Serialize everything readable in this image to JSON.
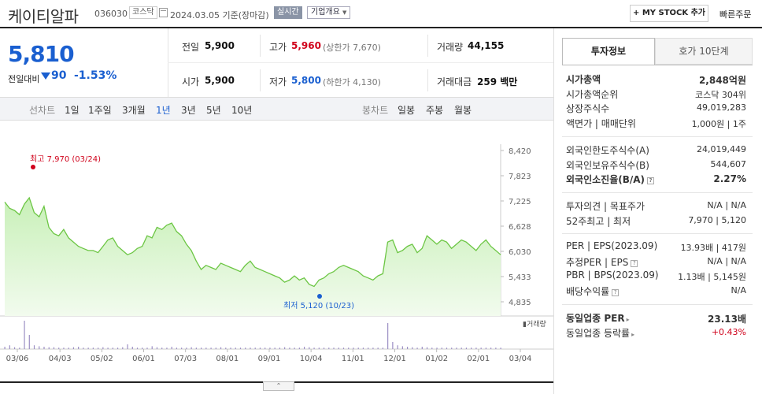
{
  "header": {
    "stock_name": "케이티알파",
    "code": "036030",
    "market_badge": "코스닥",
    "date": "2024.03.05",
    "basis": "기준(장마감)",
    "realtime_label": "실시간",
    "corp_info_label": "기업개요",
    "mystock_label": "+ MY STOCK 추가",
    "quick_order_label": "빠른주문"
  },
  "price": {
    "current": "5,810",
    "compare_label": "전일대비",
    "change": "90",
    "change_pct": "-1.53%",
    "prev_label": "전일",
    "prev": "5,900",
    "high_label": "고가",
    "high": "5,960",
    "upper_limit": "(상한가 7,670)",
    "volume_label": "거래량",
    "volume": "44,155",
    "open_label": "시가",
    "open": "5,900",
    "low_label": "저가",
    "low": "5,800",
    "lower_limit": "(하한가 4,130)",
    "amount_label": "거래대금",
    "amount": "259 백만"
  },
  "tabs": {
    "line_label": "선차트",
    "periods": [
      "1일",
      "1주일",
      "3개월",
      "1년",
      "3년",
      "5년",
      "10년"
    ],
    "active": "1년",
    "candle_label": "봉차트",
    "candles": [
      "일봉",
      "주봉",
      "월봉"
    ]
  },
  "chart_data": {
    "type": "area",
    "title": "",
    "xlabel": "",
    "ylabel": "",
    "x_ticks": [
      "03/06",
      "04/03",
      "05/02",
      "06/01",
      "07/03",
      "08/01",
      "09/01",
      "10/04",
      "11/01",
      "12/01",
      "01/02",
      "02/01",
      "03/04"
    ],
    "y_ticks": [
      "8,420",
      "7,823",
      "7,225",
      "6,628",
      "6,030",
      "5,433",
      "4,835"
    ],
    "ylim": [
      4835,
      8420
    ],
    "max_label": "최고 7,970 (03/24)",
    "min_label": "최저 5,120 (10/23)",
    "volume_label": "거래량",
    "series": [
      {
        "name": "",
        "values": [
          7200,
          7050,
          7000,
          6900,
          7150,
          7300,
          6950,
          6850,
          7100,
          6600,
          6450,
          6400,
          6550,
          6350,
          6250,
          6150,
          6100,
          6050,
          6050,
          6000,
          6150,
          6300,
          6350,
          6150,
          6050,
          5950,
          6000,
          6100,
          6150,
          6400,
          6350,
          6600,
          6550,
          6650,
          6700,
          6500,
          6400,
          6200,
          6050,
          5800,
          5600,
          5700,
          5650,
          5600,
          5750,
          5700,
          5650,
          5600,
          5550,
          5700,
          5800,
          5650,
          5600,
          5550,
          5500,
          5450,
          5400,
          5300,
          5350,
          5450,
          5350,
          5400,
          5250,
          5200,
          5350,
          5400,
          5500,
          5550,
          5650,
          5700,
          5650,
          5600,
          5550,
          5450,
          5400,
          5350,
          5450,
          5500,
          6250,
          6300,
          6000,
          6050,
          6150,
          6200,
          6000,
          6100,
          6400,
          6300,
          6200,
          6300,
          6250,
          6100,
          6200,
          6300,
          6250,
          6150,
          6050,
          6200,
          6300,
          6150,
          6050,
          5950
        ]
      },
      {
        "name": "거래량",
        "values": [
          5,
          8,
          4,
          3,
          60,
          30,
          8,
          6,
          5,
          4,
          4,
          3,
          3,
          3,
          4,
          5,
          3,
          3,
          3,
          3,
          4,
          3,
          3,
          3,
          4,
          10,
          5,
          3,
          3,
          3,
          6,
          4,
          3,
          3,
          5,
          3,
          3,
          3,
          4,
          3,
          3,
          3,
          3,
          3,
          4,
          3,
          3,
          3,
          3,
          3,
          3,
          3,
          3,
          3,
          3,
          3,
          3,
          4,
          3,
          3,
          3,
          5,
          4,
          3,
          3,
          3,
          3,
          3,
          3,
          3,
          3,
          3,
          3,
          3,
          3,
          3,
          3,
          3,
          55,
          15,
          8,
          6,
          5,
          4,
          3,
          5,
          4,
          3,
          3,
          3,
          3,
          3,
          3,
          3,
          3,
          3,
          3,
          3,
          3,
          3,
          3,
          3
        ]
      }
    ]
  },
  "info": {
    "tab_on": "투자정보",
    "tab_off": "호가 10단계",
    "rows1": [
      {
        "label": "시가총액",
        "value": "2,848억원",
        "bold": true
      },
      {
        "label": "시가총액순위",
        "value": "코스닥 304위"
      },
      {
        "label": "상장주식수",
        "value": "49,019,283"
      },
      {
        "label": "액면가 | 매매단위",
        "value": "1,000원 | 1주"
      }
    ],
    "rows2": [
      {
        "label": "외국인한도주식수(A)",
        "value": "24,019,449"
      },
      {
        "label": "외국인보유주식수(B)",
        "value": "544,607"
      },
      {
        "label": "외국인소진율(B/A)",
        "value": "2.27%",
        "bold": true
      }
    ],
    "rows3": [
      {
        "label": "투자의견 | 목표주가",
        "value": "N/A | N/A"
      },
      {
        "label": "52주최고 | 최저",
        "value": "7,970 | 5,120"
      }
    ],
    "rows4": [
      {
        "label": "PER | EPS(2023.09)",
        "value": "13.93배 | 417원"
      },
      {
        "label": "추정PER | EPS",
        "value": "N/A | N/A"
      },
      {
        "label": "PBR | BPS(2023.09)",
        "value": "1.13배 | 5,145원"
      },
      {
        "label": "배당수익률",
        "value": "N/A"
      }
    ],
    "rows5": [
      {
        "label": "동일업종 PER",
        "value": "23.13배",
        "bold": true
      },
      {
        "label": "동일업종 등락률",
        "value": "+0.43%",
        "red": true
      }
    ]
  }
}
